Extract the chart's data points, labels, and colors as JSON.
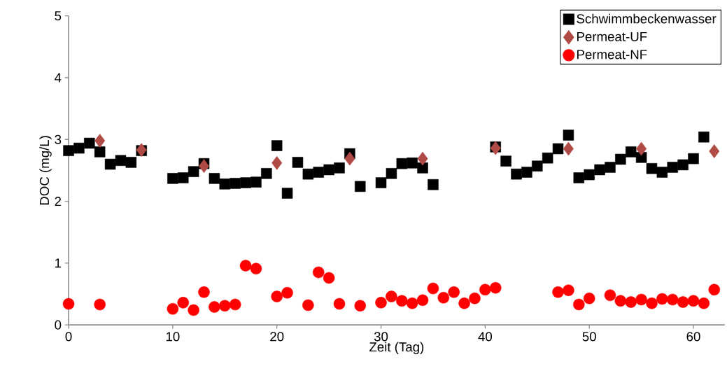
{
  "chart_data": {
    "type": "scatter",
    "xlabel": "Zeit (Tag)",
    "ylabel": "DOC (mg/L)",
    "xlim": [
      0,
      63
    ],
    "ylim": [
      0,
      5
    ],
    "xticks": [
      0,
      10,
      20,
      30,
      40,
      50,
      60
    ],
    "yticks": [
      0,
      1,
      2,
      3,
      4,
      5
    ],
    "grid": false,
    "legend": "top right",
    "series": [
      {
        "name": "Schwimmbeckenwasser",
        "color": "#000000",
        "marker": "square",
        "x": [
          0,
          1,
          2,
          3,
          4,
          5,
          6,
          7,
          10,
          11,
          12,
          13,
          14,
          15,
          16,
          17,
          18,
          19,
          20,
          21,
          22,
          23,
          24,
          25,
          26,
          27,
          28,
          30,
          31,
          32,
          33,
          34,
          35,
          41,
          42,
          43,
          44,
          45,
          46,
          47,
          48,
          49,
          50,
          51,
          52,
          53,
          54,
          55,
          56,
          57,
          58,
          59,
          60,
          61
        ],
        "values": [
          2.82,
          2.86,
          2.94,
          2.8,
          2.6,
          2.66,
          2.63,
          2.82,
          2.37,
          2.38,
          2.48,
          2.61,
          2.37,
          2.28,
          2.29,
          2.3,
          2.31,
          2.45,
          2.9,
          2.13,
          2.63,
          2.44,
          2.47,
          2.51,
          2.54,
          2.77,
          2.24,
          2.3,
          2.45,
          2.61,
          2.62,
          2.54,
          2.27,
          2.88,
          2.65,
          2.44,
          2.47,
          2.57,
          2.7,
          2.85,
          3.07,
          2.38,
          2.43,
          2.51,
          2.55,
          2.68,
          2.8,
          2.71,
          2.53,
          2.47,
          2.55,
          2.59,
          2.69,
          3.04
        ]
      },
      {
        "name": "Permeat-UF",
        "color": "#b04a45",
        "marker": "diamond",
        "x": [
          3,
          7,
          13,
          20,
          27,
          34,
          41,
          48,
          55,
          62
        ],
        "values": [
          2.98,
          2.83,
          2.57,
          2.62,
          2.69,
          2.69,
          2.86,
          2.85,
          2.85,
          2.81
        ]
      },
      {
        "name": "Permeat-NF",
        "color": "#ff0000",
        "marker": "circle",
        "x": [
          0,
          3,
          10,
          11,
          12,
          13,
          14,
          15,
          16,
          17,
          18,
          20,
          21,
          23,
          24,
          25,
          26,
          28,
          30,
          31,
          32,
          33,
          34,
          35,
          36,
          37,
          38,
          39,
          40,
          41,
          47,
          48,
          49,
          50,
          52,
          53,
          54,
          55,
          56,
          57,
          58,
          59,
          60,
          61,
          62
        ],
        "values": [
          0.34,
          0.33,
          0.26,
          0.36,
          0.24,
          0.53,
          0.29,
          0.31,
          0.33,
          0.96,
          0.91,
          0.46,
          0.52,
          0.32,
          0.85,
          0.76,
          0.34,
          0.31,
          0.36,
          0.46,
          0.39,
          0.35,
          0.4,
          0.59,
          0.44,
          0.53,
          0.35,
          0.43,
          0.57,
          0.6,
          0.53,
          0.56,
          0.33,
          0.43,
          0.48,
          0.39,
          0.37,
          0.41,
          0.35,
          0.42,
          0.41,
          0.37,
          0.39,
          0.35,
          0.57
        ]
      }
    ]
  }
}
